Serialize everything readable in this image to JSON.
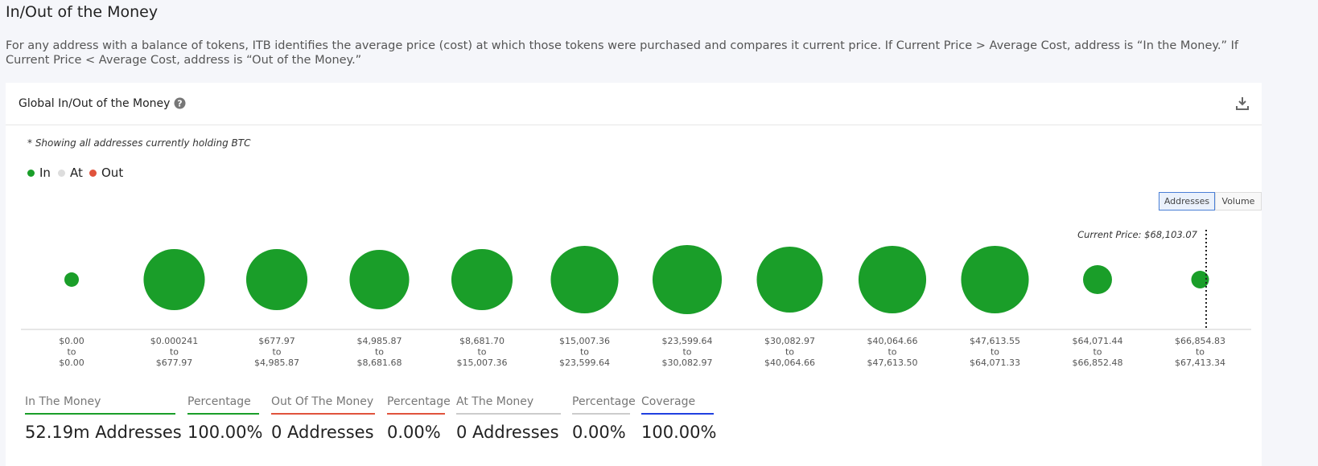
{
  "header": {
    "title": "In/Out of the Money",
    "description": "For any address with a balance of tokens, ITB identifies the average price (cost) at which those tokens were purchased and compares it current price. If Current Price > Average Cost, address is “In the Money.” If Current Price < Average Cost, address is “Out of the Money.”"
  },
  "card": {
    "title": "Global In/Out of the Money",
    "note": "* Showing all addresses currently holding BTC",
    "legend": [
      {
        "name": "In",
        "color": "#1a9e29"
      },
      {
        "name": "At",
        "color": "#dddddd"
      },
      {
        "name": "Out",
        "color": "#e0533c"
      }
    ],
    "toggle": [
      "Addresses",
      "Volume"
    ],
    "current_price_label": "Current Price: $68,103.07"
  },
  "chart_data": {
    "type": "bubble",
    "color": "#1a9e29",
    "range_joiner": "to",
    "ranges": [
      {
        "from": "$0.00",
        "to": "$0.00"
      },
      {
        "from": "$0.000241",
        "to": "$677.97"
      },
      {
        "from": "$677.97",
        "to": "$4,985.87"
      },
      {
        "from": "$4,985.87",
        "to": "$8,681.68"
      },
      {
        "from": "$8,681.70",
        "to": "$15,007.36"
      },
      {
        "from": "$15,007.36",
        "to": "$23,599.64"
      },
      {
        "from": "$23,599.64",
        "to": "$30,082.97"
      },
      {
        "from": "$30,082.97",
        "to": "$40,064.66"
      },
      {
        "from": "$40,064.66",
        "to": "$47,613.50"
      },
      {
        "from": "$47,613.55",
        "to": "$64,071.33"
      },
      {
        "from": "$64,071.44",
        "to": "$66,852.48"
      },
      {
        "from": "$66,854.83",
        "to": "$67,413.34"
      }
    ],
    "values": [
      0.28,
      5.01,
      5.01,
      4.75,
      5.01,
      6.12,
      6.41,
      5.83,
      6.12,
      6.12,
      1.12,
      0.42
    ]
  },
  "stats": [
    {
      "label": "In The Money",
      "value": "52.19m Addresses",
      "color": "#1a9e29"
    },
    {
      "label": "Percentage",
      "value": "100.00%",
      "color": "#1a9e29"
    },
    {
      "label": "Out Of The Money",
      "value": "0 Addresses",
      "color": "#e0533c"
    },
    {
      "label": "Percentage",
      "value": "0.00%",
      "color": "#e0533c"
    },
    {
      "label": "At The Money",
      "value": "0 Addresses",
      "color": "#cccccc"
    },
    {
      "label": "Percentage",
      "value": "0.00%",
      "color": "#cccccc"
    },
    {
      "label": "Coverage",
      "value": "100.00%",
      "color": "#2040e0"
    }
  ]
}
